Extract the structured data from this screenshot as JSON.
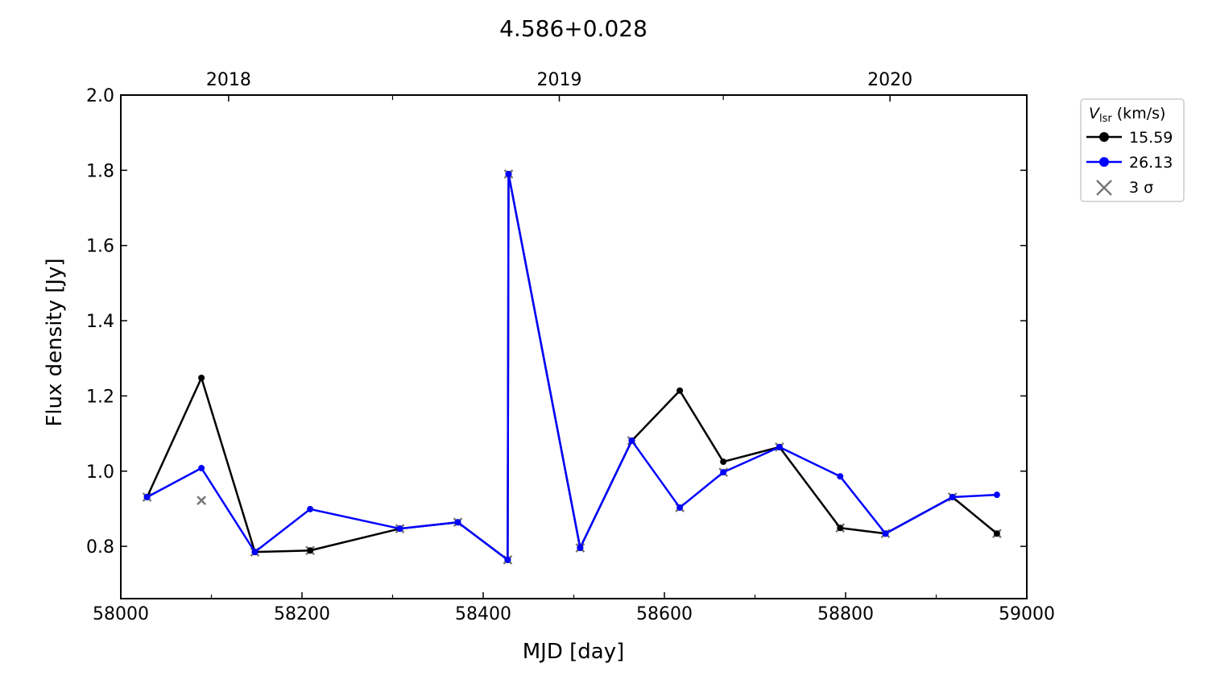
{
  "chart_data": {
    "type": "line",
    "title": "4.586+0.028",
    "xlabel": "MJD [day]",
    "ylabel": "Flux density [Jy]",
    "xlim": [
      58000,
      59000
    ],
    "ylim": [
      0.661,
      2.0
    ],
    "xticks": [
      58000,
      58200,
      58400,
      58600,
      58800,
      59000
    ],
    "yticks": [
      0.8,
      1.0,
      1.2,
      1.4,
      1.6,
      1.8,
      2.0
    ],
    "ytick_labels": [
      "0.8",
      "1.0",
      "1.2",
      "1.4",
      "1.6",
      "1.8",
      "2.0"
    ],
    "top_axis": {
      "ticks": [
        {
          "label": "2018",
          "mjd": 58119
        },
        {
          "label": "2019",
          "mjd": 58484
        },
        {
          "label": "2020",
          "mjd": 58849
        }
      ],
      "minor_mjd": [
        58300,
        58665
      ]
    },
    "legend": {
      "title_main": "V",
      "title_sub": "lsr",
      "title_rest": " (km/s)",
      "placement": "outside-right-top",
      "sigma_label": "3 σ"
    },
    "series": [
      {
        "name": "15.59",
        "color": "#000000",
        "x": [
          58029,
          58089,
          58148,
          58209,
          58308,
          58372,
          58427,
          58428,
          58507,
          58564,
          58617,
          58665,
          58727,
          58794,
          58844,
          58918,
          58967
        ],
        "y": [
          0.931,
          1.248,
          0.785,
          0.789,
          0.847,
          0.864,
          0.764,
          1.79,
          0.796,
          1.081,
          1.214,
          1.025,
          1.064,
          0.849,
          0.834,
          0.931,
          0.834
        ]
      },
      {
        "name": "26.13",
        "color": "#0000ff",
        "x": [
          58029,
          58089,
          58148,
          58209,
          58308,
          58372,
          58427,
          58428,
          58507,
          58564,
          58617,
          58665,
          58727,
          58794,
          58844,
          58918,
          58967
        ],
        "y": [
          0.931,
          1.008,
          0.785,
          0.899,
          0.847,
          0.864,
          0.764,
          1.79,
          0.796,
          1.081,
          0.903,
          0.997,
          1.064,
          0.986,
          0.834,
          0.931,
          0.937
        ]
      }
    ],
    "sigma_points": {
      "name": "3 σ",
      "color": "#777777",
      "x": [
        58029,
        58089,
        58148,
        58209,
        58308,
        58372,
        58427,
        58428,
        58507,
        58564,
        58617,
        58665,
        58727,
        58794,
        58844,
        58918,
        58967
      ],
      "y": [
        0.931,
        0.922,
        0.785,
        0.789,
        0.847,
        0.864,
        0.764,
        1.79,
        0.796,
        1.081,
        0.903,
        0.997,
        1.064,
        0.849,
        0.834,
        0.931,
        0.834
      ]
    }
  }
}
